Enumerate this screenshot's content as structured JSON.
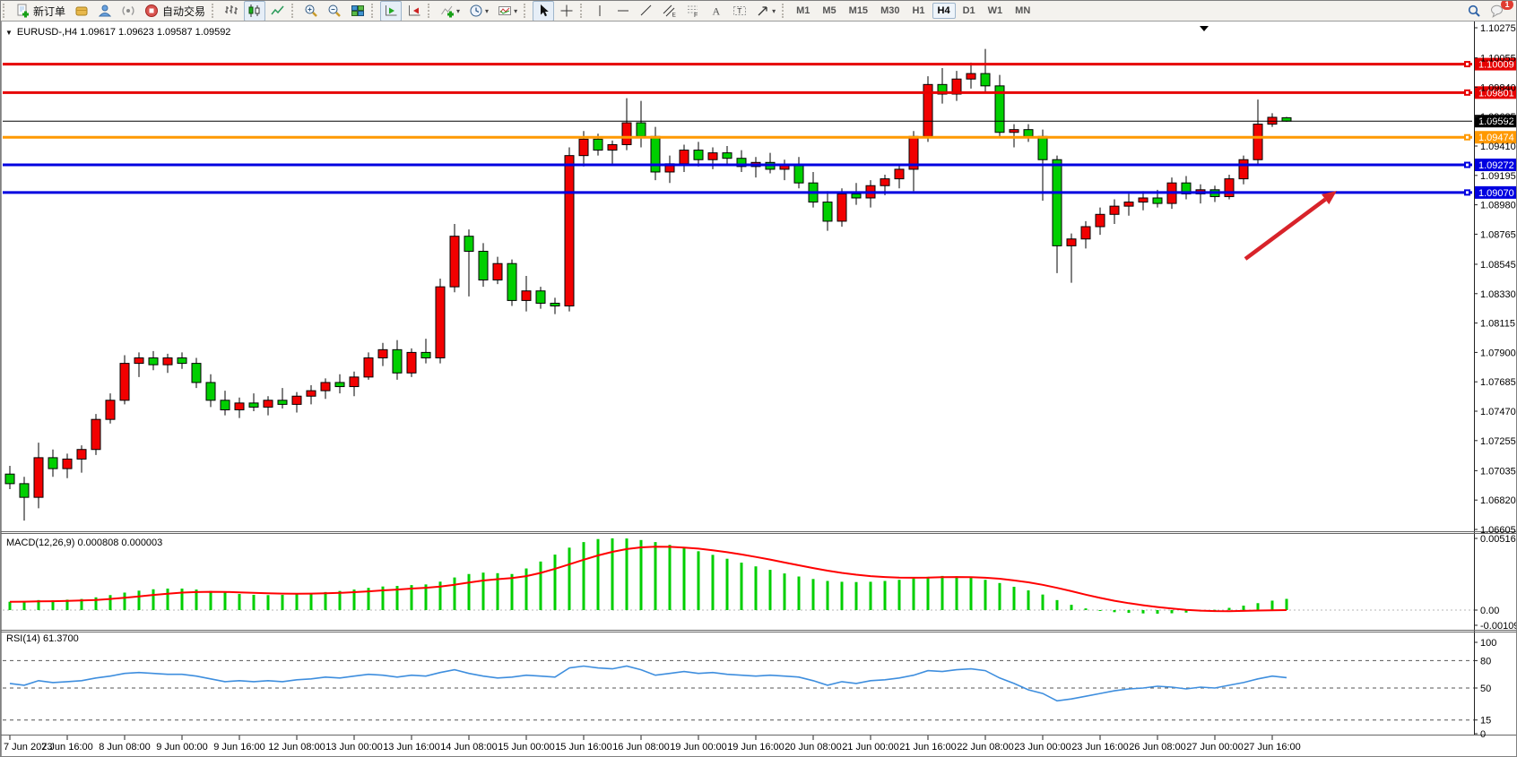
{
  "labels": {
    "chart_title": "EURUSD-,H4  1.09617 1.09623 1.09587 1.09592",
    "macd_label": "MACD(12,26,9) 0.000808 0.000003",
    "rsi_label": "RSI(14) 61.3700"
  },
  "toolbar": {
    "groups": [
      {
        "name": "trade",
        "items": [
          {
            "icon": "new-order",
            "name": "new-order",
            "label": "新订单"
          },
          {
            "icon": "market-watch",
            "name": "market-watch"
          },
          {
            "icon": "profile",
            "name": "profile"
          },
          {
            "icon": "signals",
            "name": "signals"
          },
          {
            "icon": "autotrade",
            "name": "autotrade",
            "label": "自动交易"
          }
        ]
      },
      {
        "name": "chart-type",
        "items": [
          {
            "icon": "chart-bars",
            "name": "bar-chart"
          },
          {
            "icon": "chart-candles",
            "name": "candlestick-chart",
            "pressed": true
          },
          {
            "icon": "chart-line",
            "name": "line-chart"
          }
        ]
      },
      {
        "name": "zoom",
        "items": [
          {
            "icon": "zoom-in",
            "name": "zoom-in"
          },
          {
            "icon": "zoom-out",
            "name": "zoom-out"
          },
          {
            "icon": "tile-windows",
            "name": "tile-windows"
          }
        ]
      },
      {
        "name": "scroll",
        "items": [
          {
            "icon": "auto-scroll",
            "name": "auto-scroll",
            "pressed": true
          },
          {
            "icon": "chart-shift",
            "name": "chart-shift"
          }
        ]
      },
      {
        "name": "menus",
        "items": [
          {
            "icon": "indicators",
            "name": "indicators",
            "caret": true
          },
          {
            "icon": "periods",
            "name": "periods",
            "caret": true
          },
          {
            "icon": "templates",
            "name": "templates",
            "caret": true
          }
        ]
      },
      {
        "name": "pointer",
        "items": [
          {
            "icon": "cursor",
            "name": "cursor",
            "pressed": true
          },
          {
            "icon": "crosshair",
            "name": "crosshair"
          }
        ]
      },
      {
        "name": "draw",
        "items": [
          {
            "icon": "vline",
            "name": "vertical-line"
          },
          {
            "icon": "hline",
            "name": "horizontal-line"
          },
          {
            "icon": "trendline",
            "name": "trendline"
          },
          {
            "icon": "channel",
            "name": "equidistant-channel"
          },
          {
            "icon": "fibonacci",
            "name": "fibonacci"
          },
          {
            "icon": "text",
            "name": "text"
          },
          {
            "icon": "text-label",
            "name": "text-label"
          },
          {
            "icon": "arrows",
            "name": "arrows",
            "caret": true
          }
        ]
      },
      {
        "name": "timeframes",
        "items": [
          {
            "label": "M1"
          },
          {
            "label": "M5"
          },
          {
            "label": "M15"
          },
          {
            "label": "M30"
          },
          {
            "label": "H1"
          },
          {
            "label": "H4",
            "pressed": true
          },
          {
            "label": "D1"
          },
          {
            "label": "W1"
          },
          {
            "label": "MN"
          }
        ]
      }
    ],
    "right": [
      {
        "icon": "search",
        "name": "search"
      },
      {
        "icon": "chat",
        "name": "chat",
        "badge": "1"
      }
    ]
  },
  "chart_data": {
    "type": "candlestick",
    "symbol": "EURUSD-",
    "timeframe": "H4",
    "current_ohlc": {
      "open": "1.09617",
      "high": "1.09623",
      "low": "1.09587",
      "close": "1.09592"
    },
    "bull_color": "#f20000",
    "bear_color": "#00cf00",
    "y_axis": {
      "top": 1.10275,
      "bottom": 1.06605,
      "ticks": [
        "1.10275",
        "1.10055",
        "1.09840",
        "1.09625",
        "1.09410",
        "1.09195",
        "1.08980",
        "1.08765",
        "1.08545",
        "1.08330",
        "1.08115",
        "1.07900",
        "1.07685",
        "1.07470",
        "1.07255",
        "1.07035",
        "1.06820",
        "1.06605"
      ]
    },
    "x_axis": {
      "labels": [
        "7 Jun 2023",
        "7 Jun 16:00",
        "8 Jun 08:00",
        "9 Jun 00:00",
        "9 Jun 16:00",
        "12 Jun 08:00",
        "13 Jun 00:00",
        "13 Jun 16:00",
        "14 Jun 08:00",
        "15 Jun 00:00",
        "15 Jun 16:00",
        "16 Jun 08:00",
        "19 Jun 00:00",
        "19 Jun 16:00",
        "20 Jun 08:00",
        "21 Jun 00:00",
        "21 Jun 16:00",
        "22 Jun 08:00",
        "23 Jun 00:00",
        "23 Jun 16:00",
        "26 Jun 08:00",
        "27 Jun 00:00",
        "27 Jun 16:00"
      ]
    },
    "levels": [
      {
        "label": "1.10009",
        "value": 1.10009,
        "color": "#e60000",
        "width": 3,
        "name": "resistance-1"
      },
      {
        "label": "1.09801",
        "value": 1.09801,
        "color": "#e60000",
        "width": 3,
        "name": "resistance-2"
      },
      {
        "label": "1.09474",
        "value": 1.09474,
        "color": "#ff9900",
        "width": 3,
        "name": "pivot-orange"
      },
      {
        "label": "1.09272",
        "value": 1.09272,
        "color": "#0000e0",
        "width": 3,
        "name": "support-1"
      },
      {
        "label": "1.09070",
        "value": 1.0907,
        "color": "#0000e0",
        "width": 3,
        "name": "support-2"
      }
    ],
    "current_price": {
      "label": "1.09592",
      "value": 1.09592,
      "color": "#000000"
    },
    "annotation_arrow": {
      "from": [
        1388,
        288
      ],
      "to": [
        1490,
        212
      ],
      "color": "#d8232a"
    },
    "candles": [
      [
        1.0701,
        1.0707,
        1.069,
        1.0694
      ],
      [
        1.0694,
        1.0699,
        1.0667,
        1.0684
      ],
      [
        1.0684,
        1.0724,
        1.0676,
        1.0713
      ],
      [
        1.0713,
        1.0719,
        1.0699,
        1.0705
      ],
      [
        1.0705,
        1.0716,
        1.0698,
        1.0712
      ],
      [
        1.0712,
        1.0722,
        1.0702,
        1.0719
      ],
      [
        1.0719,
        1.0745,
        1.0715,
        1.0741
      ],
      [
        1.0741,
        1.076,
        1.0738,
        1.0755
      ],
      [
        1.0755,
        1.0788,
        1.0752,
        1.0782
      ],
      [
        1.0782,
        1.079,
        1.0772,
        1.0786
      ],
      [
        1.0786,
        1.0791,
        1.0777,
        1.0781
      ],
      [
        1.0781,
        1.0789,
        1.0775,
        1.0786
      ],
      [
        1.0786,
        1.079,
        1.0778,
        1.0782
      ],
      [
        1.0782,
        1.0786,
        1.0764,
        1.0768
      ],
      [
        1.0768,
        1.0774,
        1.075,
        1.0755
      ],
      [
        1.0755,
        1.0762,
        1.0744,
        1.0748
      ],
      [
        1.0748,
        1.0757,
        1.0742,
        1.0753
      ],
      [
        1.0753,
        1.076,
        1.0747,
        1.075
      ],
      [
        1.075,
        1.0758,
        1.0744,
        1.0755
      ],
      [
        1.0755,
        1.0764,
        1.0749,
        1.0752
      ],
      [
        1.0752,
        1.0761,
        1.0746,
        1.0758
      ],
      [
        1.0758,
        1.0766,
        1.0752,
        1.0762
      ],
      [
        1.0762,
        1.0771,
        1.0756,
        1.0768
      ],
      [
        1.0768,
        1.0774,
        1.076,
        1.0765
      ],
      [
        1.0765,
        1.0776,
        1.0758,
        1.0772
      ],
      [
        1.0772,
        1.079,
        1.077,
        1.0786
      ],
      [
        1.0786,
        1.0797,
        1.078,
        1.0792
      ],
      [
        1.0792,
        1.0799,
        1.077,
        1.0775
      ],
      [
        1.0775,
        1.0793,
        1.0772,
        1.079
      ],
      [
        1.079,
        1.08,
        1.0782,
        1.0786
      ],
      [
        1.0786,
        1.0844,
        1.0782,
        1.0838
      ],
      [
        1.0838,
        1.0884,
        1.0834,
        1.0875
      ],
      [
        1.0875,
        1.088,
        1.0831,
        1.0864
      ],
      [
        1.0864,
        1.087,
        1.0838,
        1.0843
      ],
      [
        1.0843,
        1.086,
        1.084,
        1.0855
      ],
      [
        1.0855,
        1.0858,
        1.0824,
        1.0828
      ],
      [
        1.0828,
        1.0846,
        1.082,
        1.0835
      ],
      [
        1.0835,
        1.0838,
        1.0822,
        1.0826
      ],
      [
        1.0826,
        1.083,
        1.0818,
        1.0824
      ],
      [
        1.0824,
        1.094,
        1.082,
        1.0934
      ],
      [
        1.0934,
        1.0952,
        1.0926,
        1.0946
      ],
      [
        1.0946,
        1.095,
        1.0934,
        1.0938
      ],
      [
        1.0938,
        1.0945,
        1.0928,
        1.0942
      ],
      [
        1.0942,
        1.0976,
        1.0938,
        1.0958
      ],
      [
        1.0958,
        1.0974,
        1.094,
        1.0948
      ],
      [
        1.0948,
        1.0955,
        1.0916,
        1.0922
      ],
      [
        1.0922,
        1.0934,
        1.0914,
        1.0928
      ],
      [
        1.0928,
        1.0942,
        1.0922,
        1.0938
      ],
      [
        1.0938,
        1.0944,
        1.0926,
        1.0931
      ],
      [
        1.0931,
        1.094,
        1.0924,
        1.0936
      ],
      [
        1.0936,
        1.0941,
        1.0928,
        1.0932
      ],
      [
        1.0932,
        1.0938,
        1.0922,
        1.0926
      ],
      [
        1.0926,
        1.0933,
        1.0918,
        1.0929
      ],
      [
        1.0929,
        1.0936,
        1.0921,
        1.0924
      ],
      [
        1.0924,
        1.0931,
        1.0916,
        1.0927
      ],
      [
        1.0927,
        1.0933,
        1.091,
        1.0914
      ],
      [
        1.0914,
        1.0922,
        1.0896,
        1.09
      ],
      [
        1.09,
        1.0908,
        1.0879,
        1.0886
      ],
      [
        1.0886,
        1.091,
        1.0882,
        1.0906
      ],
      [
        1.0906,
        1.0914,
        1.0898,
        1.0903
      ],
      [
        1.0903,
        1.0916,
        1.0896,
        1.0912
      ],
      [
        1.0912,
        1.092,
        1.0905,
        1.0917
      ],
      [
        1.0917,
        1.0928,
        1.091,
        1.0924
      ],
      [
        1.0924,
        1.0952,
        1.0908,
        1.0948
      ],
      [
        1.0948,
        1.0992,
        1.0944,
        1.0986
      ],
      [
        1.0986,
        1.0998,
        1.0972,
        1.0979
      ],
      [
        1.0979,
        1.0996,
        1.0974,
        1.099
      ],
      [
        1.099,
        1.1002,
        1.0983,
        1.0994
      ],
      [
        1.0994,
        1.1012,
        1.098,
        1.0985
      ],
      [
        1.0985,
        1.0993,
        1.0948,
        1.0951
      ],
      [
        1.0951,
        1.0957,
        1.094,
        1.0953
      ],
      [
        1.0953,
        1.0957,
        1.0944,
        1.0948
      ],
      [
        1.0948,
        1.0953,
        1.0901,
        1.0931
      ],
      [
        1.0931,
        1.0934,
        1.0848,
        1.0868
      ],
      [
        1.0868,
        1.0877,
        1.0841,
        1.0873
      ],
      [
        1.0873,
        1.0886,
        1.0866,
        1.0882
      ],
      [
        1.0882,
        1.0896,
        1.0876,
        1.0891
      ],
      [
        1.0891,
        1.0902,
        1.0884,
        1.0897
      ],
      [
        1.0897,
        1.0906,
        1.089,
        1.09
      ],
      [
        1.09,
        1.0908,
        1.0894,
        1.0903
      ],
      [
        1.0903,
        1.0909,
        1.0896,
        1.0899
      ],
      [
        1.0899,
        1.0918,
        1.0895,
        1.0914
      ],
      [
        1.0914,
        1.0919,
        1.0902,
        1.0906
      ],
      [
        1.0906,
        1.0913,
        1.0899,
        1.0909
      ],
      [
        1.0909,
        1.0912,
        1.09,
        1.0904
      ],
      [
        1.0904,
        1.092,
        1.0902,
        1.0917
      ],
      [
        1.0917,
        1.0934,
        1.0913,
        1.0931
      ],
      [
        1.0931,
        1.0975,
        1.0927,
        1.0957
      ],
      [
        1.0957,
        1.0965,
        1.0955,
        1.0962
      ],
      [
        1.09617,
        1.09623,
        1.09587,
        1.09592
      ]
    ],
    "macd": {
      "label": "MACD(12,26,9) 0.000808 0.000003",
      "histogram_color": "#00cf00",
      "signal_color": "#ff0000",
      "axis": [
        "0.005166",
        "0.00",
        "-0.001095"
      ],
      "max": 0.005166,
      "min": -0.001095,
      "histogram": [
        0.0006,
        0.00065,
        0.00072,
        0.0007,
        0.00075,
        0.0008,
        0.00092,
        0.00108,
        0.00126,
        0.0014,
        0.0015,
        0.00155,
        0.00155,
        0.00148,
        0.00138,
        0.00126,
        0.00116,
        0.0011,
        0.00108,
        0.0011,
        0.00115,
        0.00122,
        0.0013,
        0.00138,
        0.00148,
        0.0016,
        0.0017,
        0.00174,
        0.0018,
        0.00185,
        0.00205,
        0.00235,
        0.0026,
        0.0027,
        0.00266,
        0.0026,
        0.003,
        0.0035,
        0.004,
        0.0045,
        0.0049,
        0.00512,
        0.00517,
        0.00516,
        0.00505,
        0.0049,
        0.0047,
        0.00448,
        0.00424,
        0.00398,
        0.0037,
        0.00342,
        0.00315,
        0.0029,
        0.00264,
        0.00242,
        0.00224,
        0.0021,
        0.00204,
        0.00202,
        0.00204,
        0.0021,
        0.00218,
        0.00228,
        0.0024,
        0.00246,
        0.00244,
        0.00234,
        0.00218,
        0.00195,
        0.00168,
        0.00142,
        0.00112,
        0.00072,
        0.00038,
        0.00012,
        -5e-05,
        -0.00015,
        -0.0002,
        -0.00024,
        -0.00026,
        -0.00023,
        -0.00018,
        -0.0001,
        2e-05,
        0.00016,
        0.00032,
        0.0005,
        0.00068,
        0.000808
      ],
      "signal": [
        0.0006,
        0.00061,
        0.00063,
        0.00064,
        0.00066,
        0.00069,
        0.00073,
        0.0008,
        0.00089,
        0.00099,
        0.00109,
        0.00118,
        0.00126,
        0.0013,
        0.00132,
        0.00131,
        0.00128,
        0.00124,
        0.00121,
        0.00119,
        0.00118,
        0.00119,
        0.00121,
        0.00124,
        0.00129,
        0.00135,
        0.00142,
        0.00148,
        0.00155,
        0.00161,
        0.0017,
        0.00183,
        0.00198,
        0.00213,
        0.00223,
        0.00231,
        0.00245,
        0.00268,
        0.00298,
        0.0033,
        0.00363,
        0.00394,
        0.0042,
        0.0044,
        0.00452,
        0.00457,
        0.00456,
        0.00451,
        0.00443,
        0.00431,
        0.00417,
        0.00401,
        0.00383,
        0.00364,
        0.00343,
        0.00323,
        0.00303,
        0.00284,
        0.00268,
        0.00255,
        0.00245,
        0.00238,
        0.00234,
        0.00233,
        0.00234,
        0.00237,
        0.00238,
        0.00237,
        0.00233,
        0.00226,
        0.00214,
        0.002,
        0.00182,
        0.0016,
        0.00136,
        0.00111,
        0.00088,
        0.00067,
        0.0005,
        0.00035,
        0.00022,
        0.00011,
        2e-05,
        -4e-05,
        -7e-05,
        -8e-05,
        -6e-05,
        -3e-05,
        -1e-05,
        3e-06
      ]
    },
    "rsi": {
      "label": "RSI(14) 61.3700",
      "line_color": "#3e8ede",
      "levels": [
        80,
        50,
        15
      ],
      "axis": [
        "100",
        "80",
        "50",
        "15",
        "0"
      ],
      "values": [
        55,
        53,
        58,
        56,
        57,
        58,
        61,
        63,
        66,
        67,
        66,
        65,
        65,
        63,
        60,
        57,
        58,
        57,
        58,
        57,
        59,
        60,
        62,
        61,
        63,
        65,
        64,
        62,
        64,
        63,
        67,
        70,
        66,
        63,
        61,
        62,
        64,
        63,
        62,
        72,
        74,
        72,
        71,
        74,
        70,
        64,
        66,
        68,
        66,
        67,
        65,
        64,
        63,
        64,
        63,
        62,
        58,
        53,
        57,
        55,
        58,
        59,
        61,
        64,
        69,
        68,
        70,
        71,
        69,
        61,
        55,
        48,
        44,
        36,
        38,
        41,
        44,
        47,
        49,
        50,
        52,
        51,
        49,
        51,
        50,
        53,
        56,
        60,
        63,
        61.37
      ]
    }
  }
}
